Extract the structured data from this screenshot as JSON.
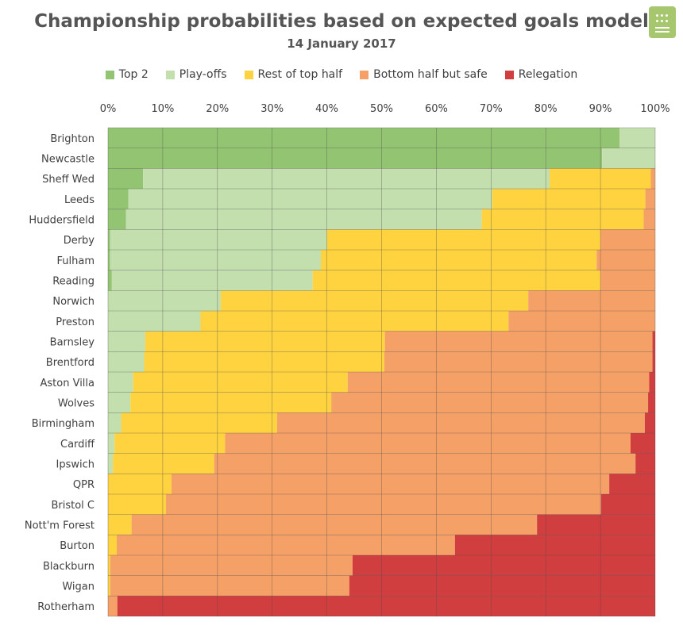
{
  "chart_data": {
    "type": "bar",
    "orientation": "horizontal",
    "stacked": true,
    "title": "Championship probabilities based on expected goals model",
    "subtitle": "14 January 2017",
    "legend_position": "top",
    "grid": true,
    "xlim": [
      0,
      100
    ],
    "x_ticks": [
      "0%",
      "10%",
      "20%",
      "30%",
      "40%",
      "50%",
      "60%",
      "70%",
      "80%",
      "90%",
      "100%"
    ],
    "categories": [
      "Brighton",
      "Newcastle",
      "Sheff Wed",
      "Leeds",
      "Huddersfield",
      "Derby",
      "Fulham",
      "Reading",
      "Norwich",
      "Preston",
      "Barnsley",
      "Brentford",
      "Aston Villa",
      "Wolves",
      "Birmingham",
      "Cardiff",
      "Ipswich",
      "QPR",
      "Bristol C",
      "Nott'm Forest",
      "Burton",
      "Blackburn",
      "Wigan",
      "Rotherham"
    ],
    "series": [
      {
        "name": "Top 2",
        "color": "#93c472",
        "values": [
          93.5,
          90.3,
          6.4,
          3.7,
          3.3,
          0.4,
          0.4,
          0.7,
          0,
          0,
          0,
          0,
          0,
          0,
          0,
          0,
          0,
          0,
          0,
          0,
          0,
          0,
          0,
          0
        ]
      },
      {
        "name": "Play-offs",
        "color": "#c3dfae",
        "values": [
          6.5,
          9.7,
          74.3,
          66.5,
          65,
          39.6,
          38.5,
          36.7,
          20.6,
          16.9,
          6.8,
          6.6,
          4.6,
          4.1,
          2.4,
          1.2,
          0.9,
          0,
          0,
          0,
          0,
          0,
          0,
          0
        ]
      },
      {
        "name": "Rest of top half",
        "color": "#ffd23f",
        "values": [
          0,
          0,
          18.5,
          28,
          29.6,
          50,
          50.4,
          52.6,
          56.2,
          56.3,
          43.8,
          43.9,
          39.2,
          36.7,
          28.5,
          20.2,
          18.5,
          11.6,
          10.6,
          4.3,
          1.6,
          0.4,
          0.4,
          0
        ]
      },
      {
        "name": "Bottom half but safe",
        "color": "#f4a066",
        "values": [
          0,
          0,
          0.8,
          1.8,
          2.1,
          10,
          10.7,
          10,
          23.2,
          26.8,
          48.9,
          49,
          55.1,
          57.9,
          67.2,
          74.1,
          77,
          80,
          79.5,
          74.1,
          61.8,
          44.3,
          43.7,
          1.7
        ]
      },
      {
        "name": "Relegation",
        "color": "#d03e3f",
        "values": [
          0,
          0,
          0,
          0,
          0,
          0,
          0,
          0,
          0,
          0,
          0.5,
          0.5,
          1.1,
          1.3,
          1.9,
          4.5,
          3.6,
          8.4,
          9.9,
          21.6,
          36.6,
          55.3,
          55.9,
          98.3
        ]
      }
    ]
  }
}
